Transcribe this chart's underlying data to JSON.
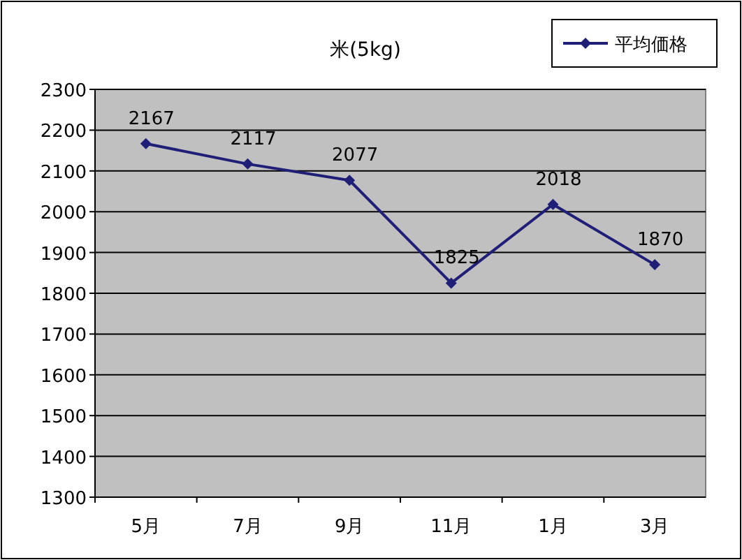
{
  "chart_data": {
    "type": "line",
    "title": "米(5kg)",
    "categories": [
      "5月",
      "7月",
      "9月",
      "11月",
      "1月",
      "3月"
    ],
    "series": [
      {
        "name": "平均価格",
        "color": "#1f1f78",
        "values": [
          2167,
          2117,
          2077,
          1825,
          2018,
          1870
        ]
      }
    ],
    "ylim": [
      1300,
      2300
    ],
    "yticks": [
      1300,
      1400,
      1500,
      1600,
      1700,
      1800,
      1900,
      2000,
      2100,
      2200,
      2300
    ],
    "grid": "y",
    "legend": "top right",
    "marker": "diamond",
    "line_style": "solid",
    "data_labels": true
  }
}
